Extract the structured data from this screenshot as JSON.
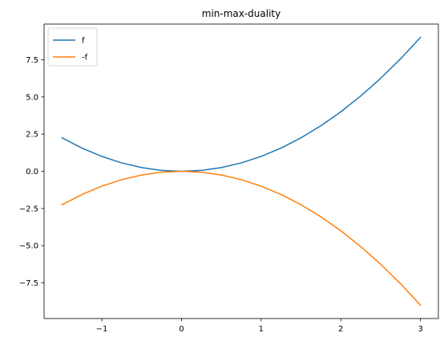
{
  "chart_data": {
    "type": "line",
    "title": "min-max-duality",
    "xlabel": "",
    "ylabel": "",
    "x": [
      -1.5,
      -1.25,
      -1.0,
      -0.75,
      -0.5,
      -0.25,
      0.0,
      0.25,
      0.5,
      0.75,
      1.0,
      1.25,
      1.5,
      1.75,
      2.0,
      2.25,
      2.5,
      2.75,
      3.0
    ],
    "series": [
      {
        "name": "f",
        "color": "#1f77b4",
        "values": [
          2.25,
          1.5625,
          1.0,
          0.5625,
          0.25,
          0.0625,
          0.0,
          0.0625,
          0.25,
          0.5625,
          1.0,
          1.5625,
          2.25,
          3.0625,
          4.0,
          5.0625,
          6.25,
          7.5625,
          9.0
        ]
      },
      {
        "name": "-f",
        "color": "#ff7f0e",
        "values": [
          -2.25,
          -1.5625,
          -1.0,
          -0.5625,
          -0.25,
          -0.0625,
          0.0,
          -0.0625,
          -0.25,
          -0.5625,
          -1.0,
          -1.5625,
          -2.25,
          -3.0625,
          -4.0,
          -5.0625,
          -6.25,
          -7.5625,
          -9.0
        ]
      }
    ],
    "xlim": [
      -1.725,
      3.225
    ],
    "ylim": [
      -9.9,
      9.9
    ],
    "x_ticks": [
      -1,
      0,
      1,
      2,
      3
    ],
    "x_tick_labels": [
      "−1",
      "0",
      "1",
      "2",
      "3"
    ],
    "y_ticks": [
      -7.5,
      -5.0,
      -2.5,
      0.0,
      2.5,
      5.0,
      7.5
    ],
    "y_tick_labels": [
      "−7.5",
      "−5.0",
      "−2.5",
      "0.0",
      "2.5",
      "5.0",
      "7.5"
    ],
    "grid": false,
    "legend_position": "upper-left"
  }
}
